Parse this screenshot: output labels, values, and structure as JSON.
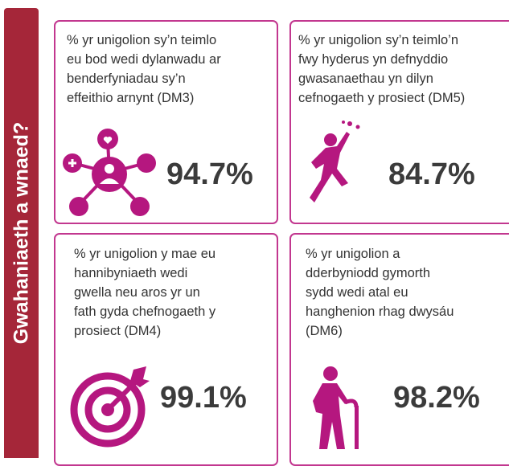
{
  "sidebar": {
    "title": "Gwahaniaeth a wnaed?"
  },
  "cards": [
    {
      "lines": [
        "% yr unigolion sy’n teimlo",
        "eu bod wedi dylanwadu ar",
        "benderfyniadau sy’n",
        "effeithio arnynt (DM3)"
      ],
      "value": "94.7%"
    },
    {
      "lines": [
        "% yr unigolion sy’n teimlo’n",
        "fwy hyderus yn defnyddio",
        "gwasanaethau yn dilyn",
        "cefnogaeth y prosiect (DM5)"
      ],
      "value": "84.7%"
    },
    {
      "lines": [
        "% yr unigolion y mae eu",
        "hannibyniaeth wedi",
        "gwella neu aros yr un",
        "fath gyda chefnogaeth y",
        "prosiect (DM4)"
      ],
      "value": "99.1%"
    },
    {
      "lines": [
        "% yr unigolion a",
        "dderbyniodd gymorth",
        "sydd wedi atal eu",
        "hanghenion rhag dwysáu",
        "(DM6)"
      ],
      "value": "98.2%"
    }
  ]
}
